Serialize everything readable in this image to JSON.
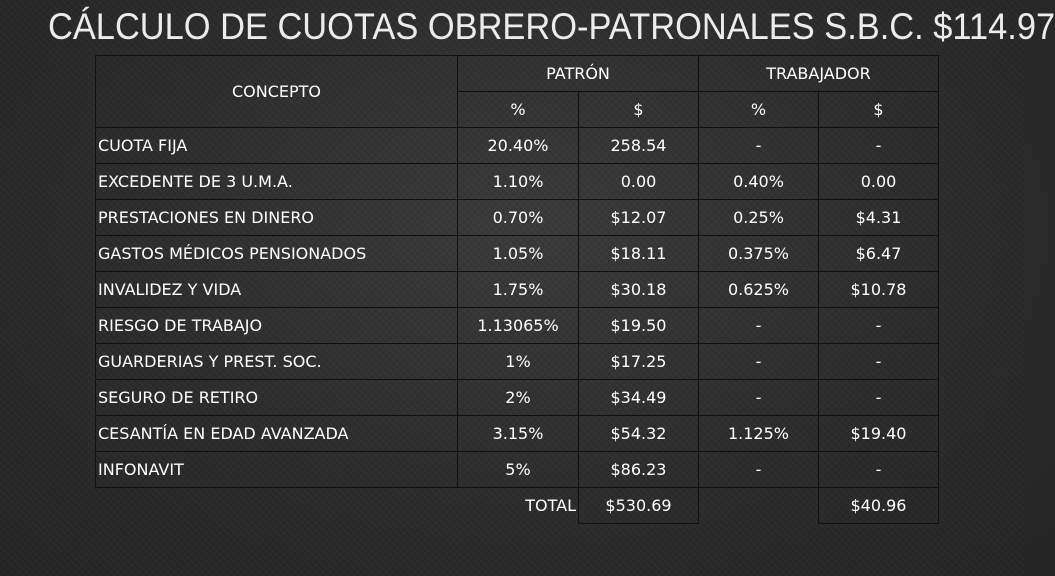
{
  "slide": {
    "title": "CÁLCULO DE CUOTAS OBRERO-PATRONALES S.B.C. $114.97"
  },
  "table": {
    "header": {
      "concept": "CONCEPTO",
      "patron": "PATRÓN",
      "trabajador": "TRABAJADOR",
      "patron_pct": "%",
      "patron_amt": "$",
      "trab_pct": "%",
      "trab_amt": "$"
    },
    "rows": [
      {
        "concepto": "CUOTA FIJA",
        "patron_pct": "20.40%",
        "patron_amt": "258.54",
        "trab_pct": "-",
        "trab_amt": "-"
      },
      {
        "concepto": "EXCEDENTE DE 3 U.M.A.",
        "patron_pct": "1.10%",
        "patron_amt": "0.00",
        "trab_pct": "0.40%",
        "trab_amt": "0.00"
      },
      {
        "concepto": "PRESTACIONES EN DINERO",
        "patron_pct": "0.70%",
        "patron_amt": "$12.07",
        "trab_pct": "0.25%",
        "trab_amt": "$4.31"
      },
      {
        "concepto": "GASTOS MÉDICOS PENSIONADOS",
        "patron_pct": "1.05%",
        "patron_amt": "$18.11",
        "trab_pct": "0.375%",
        "trab_amt": "$6.47"
      },
      {
        "concepto": "INVALIDEZ Y VIDA",
        "patron_pct": "1.75%",
        "patron_amt": "$30.18",
        "trab_pct": "0.625%",
        "trab_amt": "$10.78"
      },
      {
        "concepto": "RIESGO DE TRABAJO",
        "patron_pct": "1.13065%",
        "patron_amt": "$19.50",
        "trab_pct": "-",
        "trab_amt": "-"
      },
      {
        "concepto": "GUARDERIAS Y PREST. SOC.",
        "patron_pct": "1%",
        "patron_amt": "$17.25",
        "trab_pct": "-",
        "trab_amt": "-"
      },
      {
        "concepto": "SEGURO DE RETIRO",
        "patron_pct": "2%",
        "patron_amt": "$34.49",
        "trab_pct": "-",
        "trab_amt": "-"
      },
      {
        "concepto": "CESANTÍA EN EDAD AVANZADA",
        "patron_pct": "3.15%",
        "patron_amt": "$54.32",
        "trab_pct": "1.125%",
        "trab_amt": "$19.40"
      },
      {
        "concepto": "INFONAVIT",
        "patron_pct": "5%",
        "patron_amt": "$86.23",
        "trab_pct": "-",
        "trab_amt": "-"
      }
    ],
    "total": {
      "label": "TOTAL",
      "patron_amt": "$530.69",
      "trab_amt": "$40.96"
    }
  }
}
